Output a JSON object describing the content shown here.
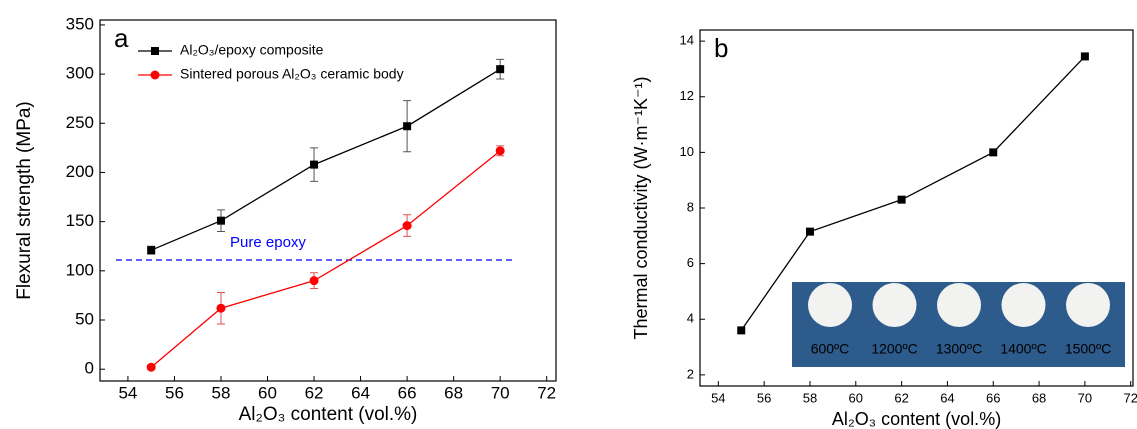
{
  "chart_data": [
    {
      "type": "line",
      "panel_label": "a",
      "x": [
        55,
        58,
        62,
        66,
        70
      ],
      "series": [
        {
          "name": "Al₂O₃/epoxy composite",
          "color": "#000000",
          "marker": "square",
          "values": [
            121,
            151,
            208,
            247,
            305
          ],
          "errors": [
            4,
            11,
            17,
            26,
            10
          ]
        },
        {
          "name": "Sintered porous Al₂O₃ ceramic body",
          "color": "#ff0000",
          "marker": "circle",
          "values": [
            2,
            62,
            90,
            146,
            222
          ],
          "errors": [
            2,
            16,
            8,
            11,
            5
          ]
        }
      ],
      "reference_line": {
        "value": 111,
        "label": "Pure epoxy",
        "color": "#0000ff"
      },
      "xlabel": "Al₂O₃ content (vol.%)",
      "ylabel": "Flexural strength (MPa)",
      "xlim": [
        52.8,
        72.4
      ],
      "xticks": [
        54,
        56,
        58,
        60,
        62,
        64,
        66,
        68,
        70,
        72
      ],
      "ylim": [
        -12,
        355
      ],
      "yticks": [
        0,
        50,
        100,
        150,
        200,
        250,
        300,
        350
      ],
      "legend": "upper left"
    },
    {
      "type": "line",
      "panel_label": "b",
      "x": [
        55,
        58,
        62,
        66,
        70
      ],
      "series": [
        {
          "name": null,
          "color": "#000000",
          "marker": "square",
          "values": [
            3.6,
            7.15,
            8.3,
            10.0,
            13.45
          ]
        }
      ],
      "inset_labels": [
        "600ºC",
        "1200ºC",
        "1300ºC",
        "1400ºC",
        "1500ºC"
      ],
      "xlabel": "Al₂O₃ content (vol.%)",
      "ylabel": "Thermal conductivity (W·m⁻¹K⁻¹)",
      "xlim": [
        53.2,
        72.1
      ],
      "xticks": [
        54,
        56,
        58,
        60,
        62,
        64,
        66,
        68,
        70,
        72
      ],
      "ylim": [
        1.6,
        14.4
      ],
      "yticks": [
        2,
        4,
        6,
        8,
        10,
        12,
        14
      ]
    }
  ]
}
